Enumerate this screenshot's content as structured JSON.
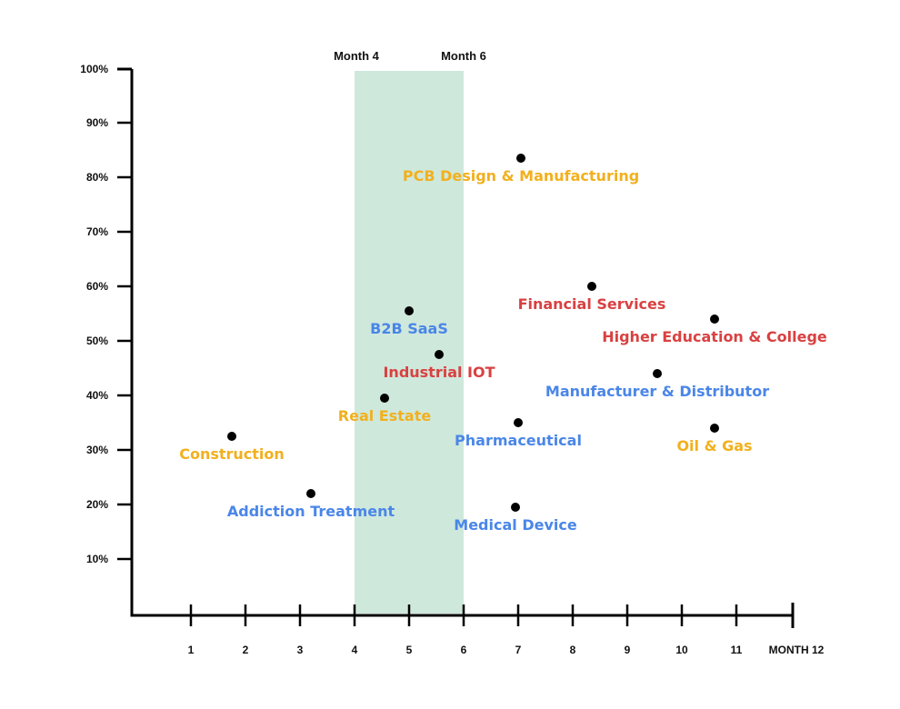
{
  "chart_data": {
    "type": "scatter",
    "x_ticks": [
      "1",
      "2",
      "3",
      "4",
      "5",
      "6",
      "7",
      "8",
      "9",
      "10",
      "11",
      "MONTH 12"
    ],
    "y_ticks": [
      "10%",
      "20%",
      "30%",
      "40%",
      "50%",
      "60%",
      "70%",
      "80%",
      "90%",
      "100%"
    ],
    "xlim": [
      0,
      12
    ],
    "ylim": [
      0,
      100
    ],
    "shaded_band": {
      "x_start": 4,
      "x_end": 6,
      "label_start": "Month 4",
      "label_end": "Month 6",
      "color": "#cfe8dc"
    },
    "grid": false,
    "colors": {
      "yellow": "#f2b01e",
      "red": "#d94141",
      "blue": "#4a86e8",
      "point": "#000000",
      "axis": "#000000"
    },
    "points": [
      {
        "label": "PCB Design & Manufacturing",
        "x": 7.05,
        "y": 83.5,
        "color": "yellow"
      },
      {
        "label": "Financial Services",
        "x": 8.35,
        "y": 60,
        "color": "red"
      },
      {
        "label": "Higher Education & College",
        "x": 10.6,
        "y": 54,
        "color": "red"
      },
      {
        "label": "B2B SaaS",
        "x": 5.0,
        "y": 55.5,
        "color": "blue"
      },
      {
        "label": "Industrial IOT",
        "x": 5.55,
        "y": 47.5,
        "color": "red"
      },
      {
        "label": "Manufacturer & Distributor",
        "x": 9.55,
        "y": 44,
        "color": "blue"
      },
      {
        "label": "Real Estate",
        "x": 4.55,
        "y": 39.5,
        "color": "yellow"
      },
      {
        "label": "Pharmaceutical",
        "x": 7.0,
        "y": 35,
        "color": "blue"
      },
      {
        "label": "Oil & Gas",
        "x": 10.6,
        "y": 34,
        "color": "yellow"
      },
      {
        "label": "Construction",
        "x": 1.75,
        "y": 32.5,
        "color": "yellow"
      },
      {
        "label": "Addiction Treatment",
        "x": 3.2,
        "y": 22,
        "color": "blue"
      },
      {
        "label": "Medical Device",
        "x": 6.95,
        "y": 19.5,
        "color": "blue"
      }
    ]
  }
}
